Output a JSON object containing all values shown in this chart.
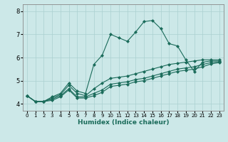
{
  "title": "",
  "xlabel": "Humidex (Indice chaleur)",
  "bg_color": "#cce8e8",
  "line_color": "#1a6b5a",
  "grid_color": "#aad0d0",
  "xlim": [
    -0.5,
    23.5
  ],
  "ylim": [
    3.7,
    8.3
  ],
  "yticks": [
    4,
    5,
    6,
    7,
    8
  ],
  "xticks": [
    0,
    1,
    2,
    3,
    4,
    5,
    6,
    7,
    8,
    9,
    10,
    11,
    12,
    13,
    14,
    15,
    16,
    17,
    18,
    19,
    20,
    21,
    22,
    23
  ],
  "series": [
    [
      4.35,
      4.1,
      4.1,
      4.3,
      4.45,
      4.9,
      4.55,
      4.45,
      5.7,
      6.1,
      7.0,
      6.85,
      6.7,
      7.1,
      7.55,
      7.6,
      7.25,
      6.6,
      6.5,
      5.9,
      5.4,
      5.8,
      5.85,
      5.85
    ],
    [
      4.35,
      4.1,
      4.1,
      4.25,
      4.4,
      4.8,
      4.45,
      4.35,
      4.65,
      4.9,
      5.1,
      5.15,
      5.2,
      5.3,
      5.4,
      5.5,
      5.6,
      5.7,
      5.75,
      5.8,
      5.85,
      5.9,
      5.9,
      5.9
    ],
    [
      4.35,
      4.1,
      4.1,
      4.2,
      4.35,
      4.65,
      4.3,
      4.3,
      4.45,
      4.6,
      4.85,
      4.9,
      4.95,
      5.05,
      5.1,
      5.2,
      5.3,
      5.4,
      5.5,
      5.55,
      5.6,
      5.7,
      5.78,
      5.82
    ],
    [
      4.35,
      4.1,
      4.1,
      4.15,
      4.3,
      4.6,
      4.25,
      4.25,
      4.35,
      4.5,
      4.75,
      4.8,
      4.85,
      4.95,
      5.0,
      5.1,
      5.2,
      5.3,
      5.4,
      5.45,
      5.5,
      5.6,
      5.72,
      5.78
    ]
  ]
}
